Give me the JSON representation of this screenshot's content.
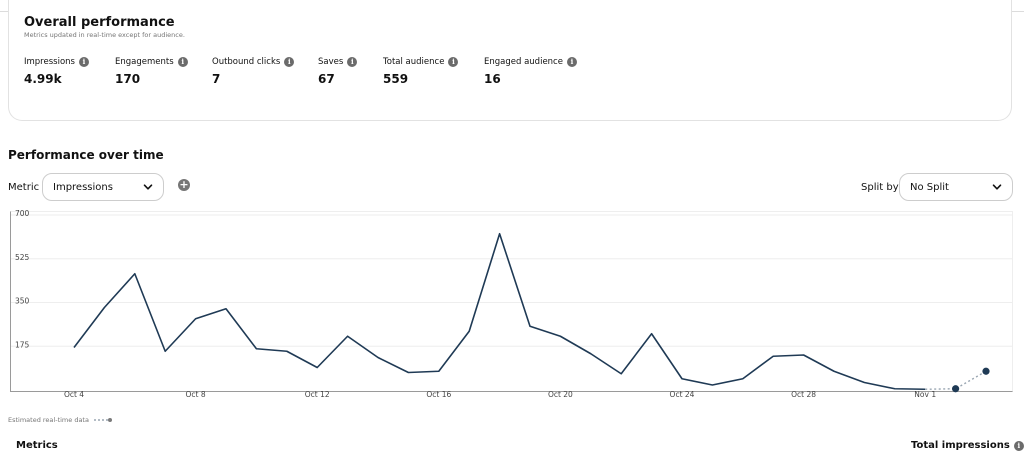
{
  "overview": {
    "title": "Overall performance",
    "subtitle": "Metrics updated in real-time except for audience.",
    "stats": [
      {
        "label": "Impressions",
        "value": "4.99k"
      },
      {
        "label": "Engagements",
        "value": "170"
      },
      {
        "label": "Outbound clicks",
        "value": "7"
      },
      {
        "label": "Saves",
        "value": "67"
      },
      {
        "label": "Total audience",
        "value": "559"
      },
      {
        "label": "Engaged audience",
        "value": "16"
      }
    ]
  },
  "performance": {
    "title": "Performance over time",
    "metric_label": "Metric",
    "metric_value": "Impressions",
    "split_label": "Split by",
    "split_value": "No Split"
  },
  "legend": {
    "estimated_label": "Estimated real-time data"
  },
  "footer": {
    "metrics_heading": "Metrics",
    "total_heading": "Total impressions"
  },
  "colors": {
    "line": "#1f3a55",
    "estimated": "#9aa6b2",
    "grid": "#eeeeee"
  },
  "chart_data": {
    "type": "line",
    "ylim": [
      0,
      700
    ],
    "yticks": [
      175,
      350,
      525,
      700
    ],
    "x_labels": [
      "Oct 4",
      "Oct 8",
      "Oct 12",
      "Oct 16",
      "Oct 20",
      "Oct 24",
      "Oct 28",
      "Nov 1"
    ],
    "x_label_indices": [
      0,
      4,
      8,
      12,
      16,
      20,
      24,
      28
    ],
    "values": [
      170,
      330,
      465,
      155,
      285,
      325,
      165,
      155,
      90,
      215,
      130,
      70,
      75,
      235,
      625,
      255,
      215,
      145,
      65,
      225,
      45,
      20,
      45,
      135,
      140,
      75,
      30,
      5,
      3
    ],
    "estimated": [
      {
        "i": 28,
        "v": 3
      },
      {
        "i": 29,
        "v": 5
      },
      {
        "i": 30,
        "v": 75
      }
    ]
  }
}
